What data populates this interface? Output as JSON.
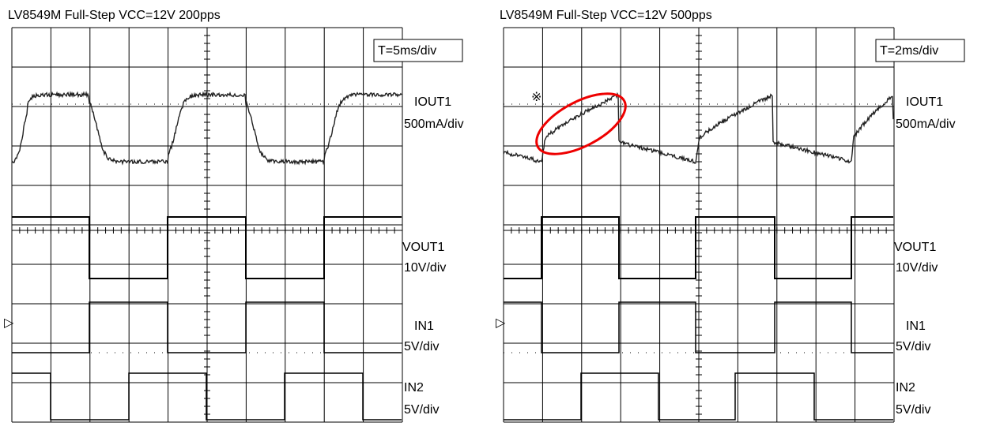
{
  "panels": [
    {
      "title": "LV8549M  Full-Step  VCC=12V  200pps",
      "timebase": "T=5ms/div",
      "channels": [
        {
          "name": "IOUT1",
          "scale": "500mA/div"
        },
        {
          "name": "VOUT1",
          "scale": "10V/div"
        },
        {
          "name": "IN1",
          "scale": "5V/div"
        },
        {
          "name": "IN2",
          "scale": "5V/div"
        }
      ]
    },
    {
      "title": "LV8549M  Full-Step  VCC=12V  500pps",
      "timebase": "T=2ms/div",
      "marker": "※",
      "channels": [
        {
          "name": "IOUT1",
          "scale": "500mA/div"
        },
        {
          "name": "VOUT1",
          "scale": "10V/div"
        },
        {
          "name": "IN1",
          "scale": "5V/div"
        },
        {
          "name": "IN2",
          "scale": "5V/div"
        }
      ]
    }
  ]
}
